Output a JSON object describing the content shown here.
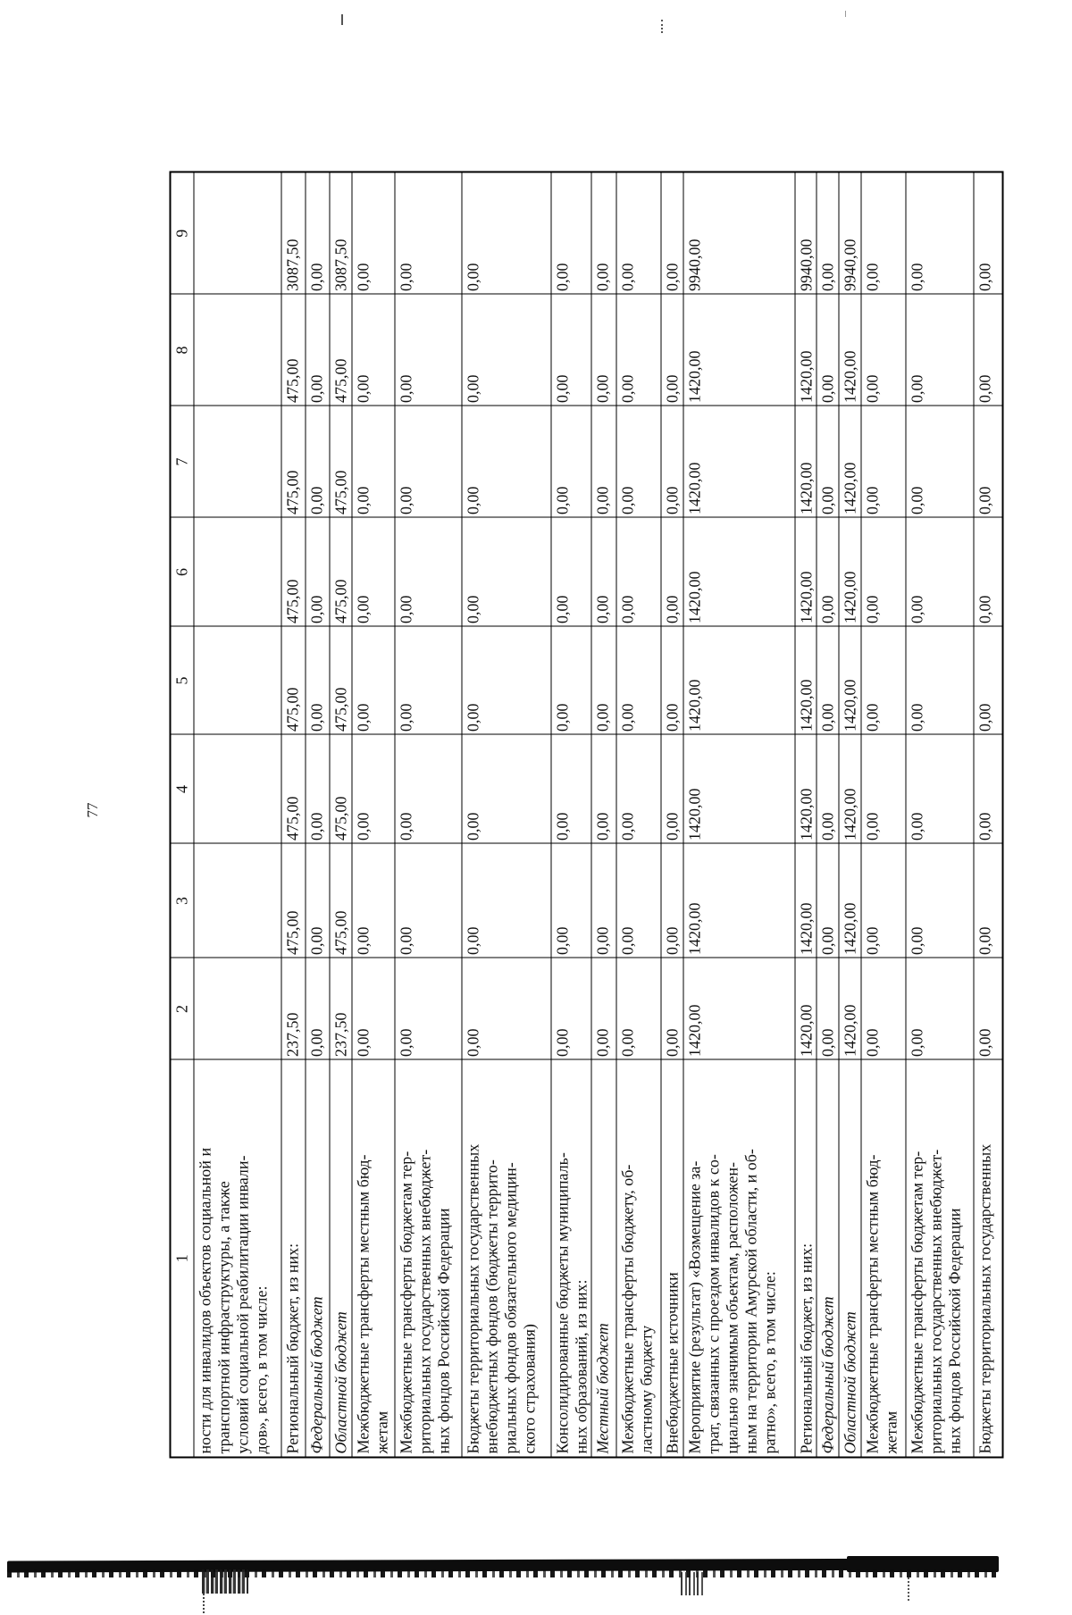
{
  "colors": {
    "ink": "#111111",
    "paper": "#ffffff"
  },
  "page": {
    "number": "77"
  },
  "table": {
    "headers": [
      "1",
      "2",
      "3",
      "4",
      "5",
      "6",
      "7",
      "8",
      "9"
    ],
    "rows": [
      {
        "label": "ности для инвалидов объектов социальной и\nтранспортной инфраструктуры, а также\nусловий социальной реабилитации инвали-\nдов», всего, в том числе:",
        "italic": false,
        "values": [
          "",
          "",
          "",
          "",
          "",
          "",
          "",
          ""
        ]
      },
      {
        "label": "Региональный бюджет, из них:",
        "italic": false,
        "values": [
          "237,50",
          "475,00",
          "475,00",
          "475,00",
          "475,00",
          "475,00",
          "475,00",
          "3087,50"
        ]
      },
      {
        "label": "Федеральный бюджет",
        "italic": true,
        "values": [
          "0,00",
          "0,00",
          "0,00",
          "0,00",
          "0,00",
          "0,00",
          "0,00",
          "0,00"
        ]
      },
      {
        "label": "Областной бюджет",
        "italic": true,
        "values": [
          "237,50",
          "475,00",
          "475,00",
          "475,00",
          "475,00",
          "475,00",
          "475,00",
          "3087,50"
        ]
      },
      {
        "label": "Межбюджетные трансферты местным бюд-\nжетам",
        "italic": false,
        "values": [
          "0,00",
          "0,00",
          "0,00",
          "0,00",
          "0,00",
          "0,00",
          "0,00",
          "0,00"
        ]
      },
      {
        "label": "Межбюджетные трансферты бюджетам тер-\nриториальных государственных внебюджет-\nных фондов Российской Федерации",
        "italic": false,
        "values": [
          "0,00",
          "0,00",
          "0,00",
          "0,00",
          "0,00",
          "0,00",
          "0,00",
          "0,00"
        ]
      },
      {
        "label": "Бюджеты территориальных государственных\nвнебюджетных фондов (бюджеты террито-\nриальных фондов обязательного медицин-\nского страхования)",
        "italic": false,
        "values": [
          "0,00",
          "0,00",
          "0,00",
          "0,00",
          "0,00",
          "0,00",
          "0,00",
          "0,00"
        ]
      },
      {
        "label": "Консолидированные бюджеты муниципаль-\nных образований, из них:",
        "italic": false,
        "values": [
          "0,00",
          "0,00",
          "0,00",
          "0,00",
          "0,00",
          "0,00",
          "0,00",
          "0,00"
        ]
      },
      {
        "label": "Местный бюджет",
        "italic": true,
        "values": [
          "0,00",
          "0,00",
          "0,00",
          "0,00",
          "0,00",
          "0,00",
          "0,00",
          "0,00"
        ]
      },
      {
        "label": "Межбюджетные трансферты бюджету, об-\nластному бюджету",
        "italic": false,
        "values": [
          "0,00",
          "0,00",
          "0,00",
          "0,00",
          "0,00",
          "0,00",
          "0,00",
          "0,00"
        ]
      },
      {
        "label": "Внебюджетные источники",
        "italic": false,
        "values": [
          "0,00",
          "0,00",
          "0,00",
          "0,00",
          "0,00",
          "0,00",
          "0,00",
          "0,00"
        ]
      },
      {
        "label": "Мероприятие (результат) «Возмещение за-\nтрат, связанных с проездом инвалидов к со-\nциально значимым объектам, расположен-\nным на территории Амурской области, и об-\nратно», всего, в том числе:",
        "italic": false,
        "values": [
          "1420,00",
          "1420,00",
          "1420,00",
          "1420,00",
          "1420,00",
          "1420,00",
          "1420,00",
          "9940,00"
        ]
      },
      {
        "label": "Региональный бюджет, из них:",
        "italic": false,
        "values": [
          "1420,00",
          "1420,00",
          "1420,00",
          "1420,00",
          "1420,00",
          "1420,00",
          "1420,00",
          "9940,00"
        ]
      },
      {
        "label": "Федеральный бюджет",
        "italic": true,
        "values": [
          "0,00",
          "0,00",
          "0,00",
          "0,00",
          "0,00",
          "0,00",
          "0,00",
          "0,00"
        ]
      },
      {
        "label": "Областной бюджет",
        "italic": true,
        "values": [
          "1420,00",
          "1420,00",
          "1420,00",
          "1420,00",
          "1420,00",
          "1420,00",
          "1420,00",
          "9940,00"
        ]
      },
      {
        "label": "Межбюджетные трансферты местным бюд-\nжетам",
        "italic": false,
        "values": [
          "0,00",
          "0,00",
          "0,00",
          "0,00",
          "0,00",
          "0,00",
          "0,00",
          "0,00"
        ]
      },
      {
        "label": "Межбюджетные трансферты бюджетам тер-\nриториальных государственных внебюджет-\nных фондов Российской Федерации",
        "italic": false,
        "values": [
          "0,00",
          "0,00",
          "0,00",
          "0,00",
          "0,00",
          "0,00",
          "0,00",
          "0,00"
        ]
      },
      {
        "label": "Бюджеты территориальных государственных",
        "italic": false,
        "values": [
          "0,00",
          "0,00",
          "0,00",
          "0,00",
          "0,00",
          "0,00",
          "0,00",
          "0,00"
        ]
      }
    ]
  }
}
